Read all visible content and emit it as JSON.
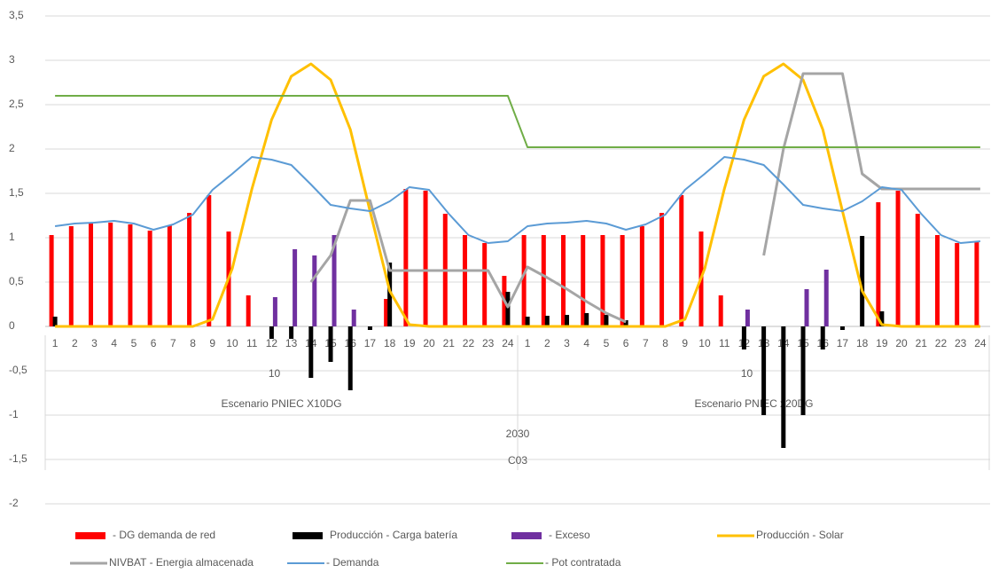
{
  "chart_data": {
    "type": "bar-line",
    "categories": [
      "1",
      "2",
      "3",
      "4",
      "5",
      "6",
      "7",
      "8",
      "9",
      "10",
      "11",
      "12",
      "13",
      "14",
      "15",
      "16",
      "17",
      "18",
      "19",
      "20",
      "21",
      "22",
      "23",
      "24",
      "1",
      "2",
      "3",
      "4",
      "5",
      "6",
      "7",
      "8",
      "9",
      "10",
      "11",
      "12",
      "13",
      "14",
      "15",
      "16",
      "17",
      "18",
      "19",
      "20",
      "21",
      "22",
      "23",
      "24"
    ],
    "scenarios": [
      {
        "level": "10",
        "name": "Escenario PNIEC X10DG"
      },
      {
        "level": "10",
        "name": "Escenario PNIEC x20DG"
      }
    ],
    "year": "2030",
    "case": "C03",
    "ylim": [
      -2,
      3.5
    ],
    "yticks": [
      -2,
      {
        "value": -1.5,
        "label": "-1,5"
      },
      -1,
      {
        "value": -0.5,
        "label": "-0,5"
      },
      0,
      {
        "value": 0.5,
        "label": "0,5"
      },
      1,
      {
        "value": 1.5,
        "label": "1,5"
      },
      2,
      {
        "value": 2.5,
        "label": "2,5"
      },
      3,
      {
        "value": 3.5,
        "label": "3,5"
      }
    ],
    "grid": true,
    "series": [
      {
        "name": "- DG demanda de red",
        "kind": "bar",
        "color": "#ff0000",
        "values": [
          1.03,
          1.13,
          1.16,
          1.17,
          1.15,
          1.08,
          1.14,
          1.28,
          1.48,
          1.07,
          0.35,
          0,
          0,
          0,
          0,
          0,
          0,
          0.31,
          1.55,
          1.53,
          1.27,
          1.03,
          0.94,
          0.57,
          1.03,
          1.03,
          1.03,
          1.03,
          1.03,
          1.03,
          1.13,
          1.28,
          1.48,
          1.07,
          0.35,
          0,
          0,
          0,
          0,
          0,
          0,
          0,
          1.4,
          1.53,
          1.27,
          1.03,
          0.94,
          0.95
        ]
      },
      {
        "name": "Producción - Carga batería",
        "kind": "bar",
        "color": "#000000",
        "values": [
          0.11,
          0,
          0,
          0,
          0,
          0,
          0,
          0,
          0,
          0,
          0,
          -0.14,
          -0.14,
          -0.58,
          -0.4,
          -0.72,
          -0.04,
          0.72,
          0,
          0,
          0,
          0,
          0,
          0.39,
          0.11,
          0.12,
          0.13,
          0.15,
          0.13,
          0.07,
          0,
          0,
          0,
          0,
          0,
          -0.26,
          -1.0,
          -1.37,
          -1.0,
          -0.26,
          -0.04,
          1.02,
          0.17,
          0,
          0,
          0,
          0,
          0
        ]
      },
      {
        "name": "- Exceso",
        "kind": "bar",
        "color": "#7030a0",
        "values": [
          0,
          0,
          0,
          0,
          0,
          0,
          0,
          0,
          0,
          0,
          0,
          0.33,
          0.87,
          0.8,
          1.03,
          0.19,
          0,
          0,
          0,
          0,
          0,
          0,
          0,
          0,
          0,
          0,
          0,
          0,
          0,
          0,
          0,
          0,
          0,
          0,
          0,
          0.19,
          0,
          0,
          0.42,
          0.64,
          0,
          0,
          0,
          0,
          0,
          0,
          0,
          0
        ]
      },
      {
        "name": "Producción - Solar",
        "kind": "line",
        "color": "#ffc000",
        "width": 3,
        "values": [
          0,
          0,
          0,
          0,
          0,
          0,
          0,
          0,
          0.08,
          0.65,
          1.55,
          2.33,
          2.82,
          2.96,
          2.78,
          2.22,
          1.3,
          0.4,
          0.02,
          0,
          0,
          0,
          0,
          0,
          0,
          0,
          0,
          0,
          0,
          0,
          0,
          0,
          0.08,
          0.65,
          1.55,
          2.33,
          2.82,
          2.96,
          2.78,
          2.22,
          1.3,
          0.4,
          0.02,
          0,
          0,
          0,
          0,
          0
        ]
      },
      {
        "name": "NIVBAT - Energia almacenada",
        "kind": "line",
        "color": "#a5a5a5",
        "width": 3,
        "values": [
          null,
          null,
          null,
          null,
          null,
          null,
          null,
          null,
          null,
          null,
          null,
          null,
          null,
          0.5,
          0.8,
          1.42,
          1.42,
          0.63,
          0.63,
          0.63,
          0.63,
          0.63,
          0.63,
          0.22,
          0.67,
          0.55,
          0.42,
          0.28,
          0.15,
          0.05,
          null,
          null,
          null,
          null,
          null,
          null,
          0.8,
          2.0,
          2.85,
          2.85,
          2.85,
          1.72,
          1.55,
          1.55,
          1.55,
          1.55,
          1.55,
          1.55
        ]
      },
      {
        "name": "- Demanda",
        "kind": "line",
        "color": "#5b9bd5",
        "width": 2,
        "values": [
          1.13,
          1.16,
          1.17,
          1.19,
          1.16,
          1.09,
          1.15,
          1.26,
          1.54,
          1.72,
          1.91,
          1.88,
          1.82,
          1.6,
          1.37,
          1.33,
          1.3,
          1.41,
          1.57,
          1.54,
          1.27,
          1.03,
          0.94,
          0.96,
          1.13,
          1.16,
          1.17,
          1.19,
          1.16,
          1.09,
          1.15,
          1.26,
          1.54,
          1.72,
          1.91,
          1.88,
          1.82,
          1.6,
          1.37,
          1.33,
          1.3,
          1.41,
          1.57,
          1.54,
          1.27,
          1.03,
          0.94,
          0.96
        ]
      },
      {
        "name": "- Pot contratada",
        "kind": "line",
        "color": "#70ad47",
        "width": 2,
        "values": [
          2.6,
          2.6,
          2.6,
          2.6,
          2.6,
          2.6,
          2.6,
          2.6,
          2.6,
          2.6,
          2.6,
          2.6,
          2.6,
          2.6,
          2.6,
          2.6,
          2.6,
          2.6,
          2.6,
          2.6,
          2.6,
          2.6,
          2.6,
          2.6,
          2.02,
          2.02,
          2.02,
          2.02,
          2.02,
          2.02,
          2.02,
          2.02,
          2.02,
          2.02,
          2.02,
          2.02,
          2.02,
          2.02,
          2.02,
          2.02,
          2.02,
          2.02,
          2.02,
          2.02,
          2.02,
          2.02,
          2.02,
          2.02
        ]
      }
    ]
  }
}
